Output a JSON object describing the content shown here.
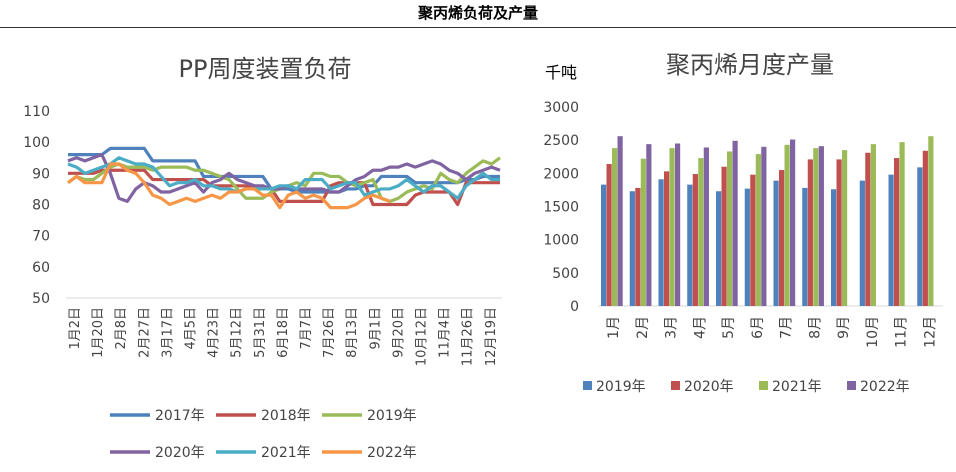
{
  "page_title": "聚丙烯负荷及产量",
  "chart_data": [
    {
      "type": "line",
      "title": "PP周度装置负荷",
      "ylim": [
        50,
        110
      ],
      "yticks": [
        50,
        60,
        70,
        80,
        90,
        100,
        110
      ],
      "xtick_labels": [
        "1月2日",
        "1月20日",
        "2月8日",
        "2月27日",
        "3月17日",
        "4月5日",
        "4月23日",
        "5月12日",
        "5月31日",
        "6月18日",
        "7月7日",
        "7月26日",
        "8月13日",
        "9月1日",
        "9月20日",
        "10月12日",
        "11月4日",
        "11月26日",
        "12月19日"
      ],
      "legend_position": "bottom",
      "series": [
        {
          "name": "2017年",
          "color": "#4f81bd",
          "values": [
            96,
            96,
            96,
            96,
            96,
            98,
            98,
            98,
            98,
            98,
            94,
            94,
            94,
            94,
            94,
            94,
            89,
            89,
            89,
            89,
            89,
            89,
            89,
            89,
            85,
            85,
            85,
            84,
            84,
            84,
            84,
            84,
            84,
            85,
            85,
            86,
            86,
            89,
            89,
            89,
            89,
            87,
            87,
            87,
            87,
            87,
            87,
            88,
            88,
            89,
            89,
            89
          ]
        },
        {
          "name": "2018年",
          "color": "#c0504d",
          "values": [
            90,
            90,
            90,
            90,
            91,
            91,
            91,
            91,
            91,
            91,
            88,
            88,
            88,
            88,
            88,
            88,
            88,
            86,
            86,
            86,
            86,
            86,
            85,
            85,
            85,
            81,
            81,
            81,
            81,
            81,
            81,
            86,
            87,
            87,
            87,
            87,
            80,
            80,
            80,
            80,
            80,
            83,
            84,
            84,
            84,
            84,
            80,
            87,
            87,
            87,
            87,
            87
          ]
        },
        {
          "name": "2019年",
          "color": "#9bbb59",
          "values": [
            87,
            89,
            88,
            88,
            90,
            92,
            93,
            92,
            92,
            92,
            91,
            92,
            92,
            92,
            92,
            91,
            91,
            90,
            89,
            88,
            85,
            82,
            82,
            82,
            84,
            85,
            86,
            87,
            86,
            90,
            90,
            89,
            89,
            87,
            86,
            87,
            88,
            82,
            81,
            82,
            84,
            85,
            86,
            85,
            90,
            88,
            87,
            90,
            92,
            94,
            93,
            95
          ]
        },
        {
          "name": "2020年",
          "color": "#8064a2",
          "values": [
            94,
            95,
            94,
            95,
            96,
            90,
            82,
            81,
            85,
            87,
            86,
            84,
            84,
            85,
            86,
            87,
            84,
            87,
            88,
            90,
            88,
            87,
            86,
            86,
            85,
            85,
            86,
            85,
            85,
            85,
            85,
            84,
            84,
            86,
            88,
            89,
            91,
            91,
            92,
            92,
            93,
            92,
            93,
            94,
            93,
            91,
            90,
            88,
            90,
            91,
            92,
            91
          ]
        },
        {
          "name": "2021年",
          "color": "#4bacc6",
          "values": [
            93,
            92,
            90,
            91,
            92,
            93,
            95,
            94,
            93,
            93,
            92,
            89,
            86,
            87,
            87,
            88,
            86,
            86,
            85,
            85,
            84,
            85,
            85,
            85,
            85,
            86,
            86,
            85,
            88,
            88,
            88,
            85,
            86,
            87,
            87,
            83,
            84,
            85,
            85,
            86,
            88,
            86,
            84,
            86,
            86,
            84,
            82,
            86,
            88,
            90,
            88,
            88
          ]
        },
        {
          "name": "2022年",
          "color": "#f79646",
          "values": [
            87,
            89,
            87,
            87,
            87,
            93,
            93,
            91,
            90,
            87,
            83,
            82,
            80,
            81,
            82,
            81,
            82,
            83,
            82,
            84,
            84,
            85,
            85,
            83,
            83,
            79,
            83,
            84,
            82,
            83,
            82,
            79,
            79,
            79,
            80,
            82,
            83,
            82,
            81
          ]
        }
      ]
    },
    {
      "type": "bar",
      "title": "聚丙烯月度产量",
      "ylabel": "千吨",
      "ylim": [
        0,
        3000
      ],
      "yticks": [
        0,
        500,
        1000,
        1500,
        2000,
        2500,
        3000
      ],
      "categories": [
        "1月",
        "2月",
        "3月",
        "4月",
        "5月",
        "6月",
        "7月",
        "8月",
        "9月",
        "10月",
        "11月",
        "12月"
      ],
      "legend_position": "bottom",
      "series": [
        {
          "name": "2019年",
          "color": "#4f81bd",
          "values": [
            1830,
            1730,
            1910,
            1830,
            1730,
            1770,
            1890,
            1780,
            1760,
            1890,
            1980,
            2090
          ]
        },
        {
          "name": "2020年",
          "color": "#c0504d",
          "values": [
            2140,
            1780,
            2030,
            1990,
            2100,
            1980,
            2050,
            2210,
            2210,
            2310,
            2230,
            2340
          ]
        },
        {
          "name": "2021年",
          "color": "#9bbb59",
          "values": [
            2380,
            2220,
            2380,
            2230,
            2330,
            2290,
            2430,
            2380,
            2350,
            2440,
            2470,
            2560
          ]
        },
        {
          "name": "2022年",
          "color": "#8064a2",
          "values": [
            2560,
            2440,
            2450,
            2390,
            2490,
            2400,
            2510,
            2410,
            null,
            null,
            null,
            null
          ]
        }
      ]
    }
  ]
}
